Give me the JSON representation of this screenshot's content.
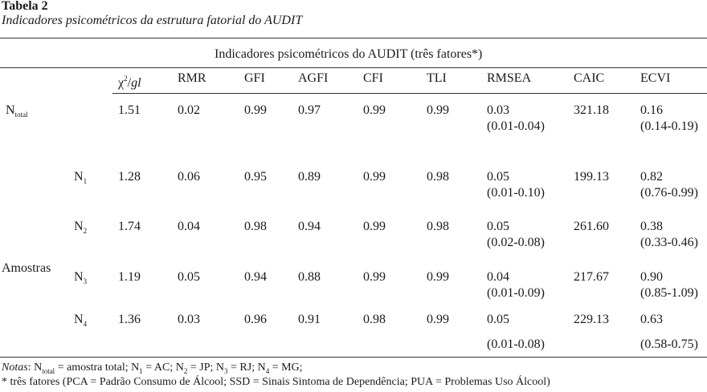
{
  "table": {
    "label": "Tabela 2",
    "caption": "Indicadores psicométricos da estrutura fatorial do AUDIT",
    "group_header": "Indicadores psicométricos do AUDIT (três fatores*)",
    "columns": {
      "chi_symbol": "χ",
      "chi_sup": "2",
      "chi_slash": "/",
      "chi_gl": "gl",
      "rmr": "RMR",
      "gfi": "GFI",
      "agfi": "AGFI",
      "cfi": "CFI",
      "tli": "TLI",
      "rmsea": "RMSEA",
      "caic": "CAIC",
      "ecvi": "ECVI"
    },
    "samples_label": "Amostras",
    "rows": [
      {
        "n": "N",
        "sub": "total",
        "chi": "1.51",
        "rmr": "0.02",
        "gfi": "0.99",
        "agfi": "0.97",
        "cfi": "0.99",
        "tli": "0.99",
        "rmsea": "0.03",
        "rmsea_ci": "(0.01-0.04)",
        "caic": "321.18",
        "ecvi": " 0.16",
        "ecvi_ci": "(0.14-0.19)"
      },
      {
        "n": "N",
        "sub": "1",
        "chi": "1.28",
        "rmr": "0.06",
        "gfi": "0.95",
        "agfi": "0.89",
        "cfi": "0.99",
        "tli": "0.98",
        "rmsea": "0.05",
        "rmsea_ci": "(0.01-0.10)",
        "caic": "199.13",
        "ecvi": "0.82",
        "ecvi_ci": "(0.76-0.99)"
      },
      {
        "n": "N",
        "sub": "2",
        "chi": "1.74",
        "rmr": "0.04",
        "gfi": "0.98",
        "agfi": "0.94",
        "cfi": "0.99",
        "tli": "0.98",
        "rmsea": "0.05",
        "rmsea_ci": "(0.02-0.08)",
        "caic": "261.60",
        "ecvi": "0.38",
        "ecvi_ci": "(0.33-0.46)"
      },
      {
        "n": "N",
        "sub": "3",
        "chi": "1.19",
        "rmr": "0.05",
        "gfi": "0.94",
        "agfi": "0.88",
        "cfi": "0.99",
        "tli": "0.99",
        "rmsea": "0.04",
        "rmsea_ci": "(0.01-0.09)",
        "caic": "217.67",
        "ecvi": "0.90",
        "ecvi_ci": "(0.85-1.09)"
      },
      {
        "n": "N",
        "sub": "4",
        "chi": "1.36",
        "rmr": "0.03",
        "gfi": "0.96",
        "agfi": "0.91",
        "cfi": "0.98",
        "tli": "0.99",
        "rmsea": "0.05",
        "rmsea_ci": "(0.01-0.08)",
        "caic": "229.13",
        "ecvi": "0.63",
        "ecvi_ci": "(0.58-0.75)"
      }
    ],
    "notes": {
      "label": "Notas",
      "line1_parts": [
        ": N",
        "total",
        " = amostra total; N",
        "1",
        " = AC; N",
        "2",
        " = JP; N",
        "3",
        " = RJ; N",
        "4",
        " = MG;"
      ],
      "line2": "* três fatores (PCA = Padrão Consumo de Álcool; SSD = Sinais Sintoma de Dependência; PUA = Problemas Uso Álcool)"
    }
  }
}
